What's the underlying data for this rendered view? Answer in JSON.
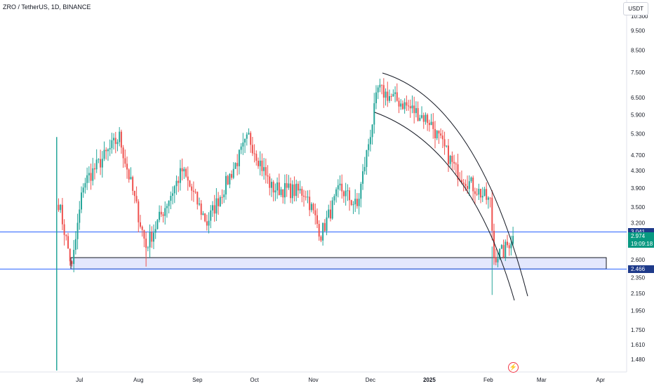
{
  "header": {
    "title": "ZRO / TetherUS, 1D, BINANCE",
    "currency": "USDT"
  },
  "colors": {
    "up": "#26a69a",
    "down": "#ef5350",
    "level_line": "#2962ff",
    "zone_fill": "#e3e7fd",
    "zone_border": "#131722",
    "arc": "#131722",
    "axis_text": "#131722",
    "last_price_bg": "#089981",
    "level_tag_bg": "#1e3a8a"
  },
  "price_tags": {
    "upper_level": "3.041",
    "last_price": "2.974",
    "countdown": "19:09:18",
    "lower_level": "2.466"
  },
  "chart_data": {
    "type": "candlestick",
    "scale": "log",
    "x_ticks": [
      "Jul",
      "Aug",
      "Sep",
      "Oct",
      "Nov",
      "Dec",
      "2025",
      "Feb",
      "Mar",
      "Apr"
    ],
    "y_ticks": [
      "10.300",
      "9.500",
      "8.500",
      "7.500",
      "6.500",
      "5.900",
      "5.300",
      "4.700",
      "4.300",
      "3.900",
      "3.500",
      "3.200",
      "2.600",
      "2.350",
      "2.150",
      "1.950",
      "1.750",
      "1.610",
      "1.480"
    ],
    "horizontal_levels": [
      3.041,
      2.466
    ],
    "zone": {
      "low": 2.466,
      "high": 2.63
    },
    "last_price": 2.974,
    "listing_wick": {
      "low": 1.39,
      "high": 5.2
    },
    "key_points": [
      {
        "date": "2024-06-20",
        "price": 3.6
      },
      {
        "date": "2024-06-27",
        "price": 2.48
      },
      {
        "date": "2024-07-03",
        "price": 4.0
      },
      {
        "date": "2024-07-22",
        "price": 5.2
      },
      {
        "date": "2024-08-05",
        "price": 2.8
      },
      {
        "date": "2024-08-24",
        "price": 4.3
      },
      {
        "date": "2024-09-06",
        "price": 3.2
      },
      {
        "date": "2024-09-28",
        "price": 5.2
      },
      {
        "date": "2024-10-10",
        "price": 3.9
      },
      {
        "date": "2024-10-28",
        "price": 3.8
      },
      {
        "date": "2024-11-05",
        "price": 3.0
      },
      {
        "date": "2024-11-15",
        "price": 3.9
      },
      {
        "date": "2024-11-24",
        "price": 3.5
      },
      {
        "date": "2024-12-05",
        "price": 6.8
      },
      {
        "date": "2024-12-20",
        "price": 6.2
      },
      {
        "date": "2025-01-01",
        "price": 5.7
      },
      {
        "date": "2025-01-15",
        "price": 4.3
      },
      {
        "date": "2025-02-02",
        "price": 3.6
      },
      {
        "date": "2025-02-04",
        "price": 2.65
      },
      {
        "date": "2025-02-09",
        "price": 2.72
      },
      {
        "date": "2025-02-14",
        "price": 2.974
      }
    ]
  }
}
